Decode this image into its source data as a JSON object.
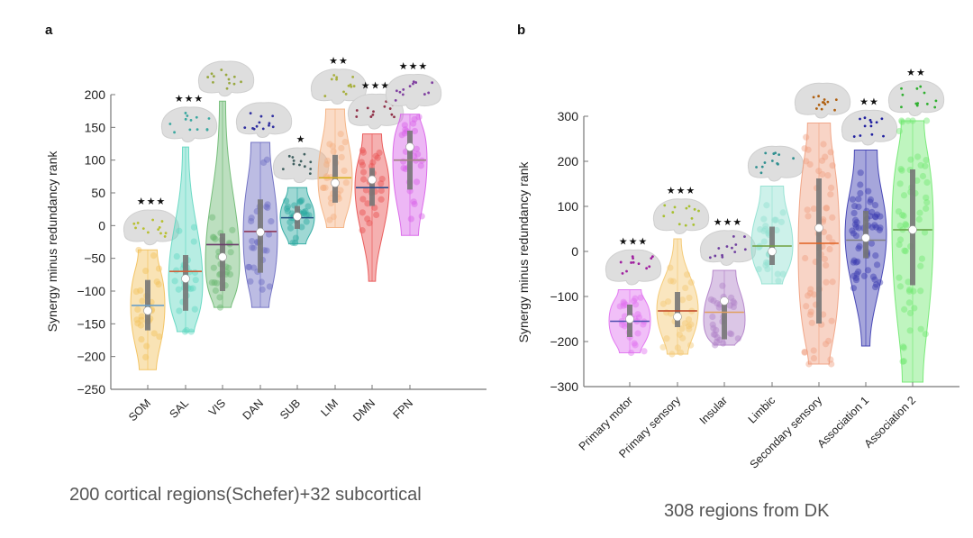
{
  "chart_data": [
    {
      "type": "violin",
      "panel_label": "a",
      "title": "",
      "xlabel": "",
      "ylabel": "Synergy minus redundancy rank",
      "ylim": [
        -250,
        200
      ],
      "yticks": [
        200,
        150,
        100,
        50,
        0,
        -50,
        -100,
        -150,
        -200,
        -250
      ],
      "ytick_labels": [
        "200",
        "150",
        "100",
        "50",
        "0",
        "−50",
        "−100",
        "−150",
        "−200",
        "−250"
      ],
      "grid": false,
      "caption": "200 cortical regions(Schefer)+32 subcortical",
      "categories": [
        "SOM",
        "SAL",
        "VIS",
        "DAN",
        "SUB",
        "LIM",
        "DMN",
        "FPN"
      ],
      "series": [
        {
          "name": "SOM",
          "color": "#f2c05a",
          "line": "#6aa0c8",
          "min": -220,
          "q1": -160,
          "median": -130,
          "mean": -122,
          "q3": -83,
          "max": -37,
          "significance": "***",
          "brain_marker": "#b8c030"
        },
        {
          "name": "SAL",
          "color": "#5fd6c0",
          "line": "#d0603a",
          "min": -162,
          "q1": -130,
          "median": -81,
          "mean": -70,
          "q3": -45,
          "max": 120,
          "significance": "***",
          "brain_marker": "#3aa8a0"
        },
        {
          "name": "VIS",
          "color": "#6ab870",
          "line": "#6a3a6a",
          "min": -125,
          "q1": -100,
          "median": -48,
          "mean": -29,
          "q3": -12,
          "max": 190,
          "significance": "",
          "brain_marker": "#98a840"
        },
        {
          "name": "DAN",
          "color": "#6a6ac0",
          "line": "#8a3050",
          "min": -125,
          "q1": -72,
          "median": -10,
          "mean": -9,
          "q3": 40,
          "max": 127,
          "significance": "",
          "brain_marker": "#3030a0"
        },
        {
          "name": "SUB",
          "color": "#2aa8a0",
          "line": "#205080",
          "min": -28,
          "q1": -5,
          "median": 14,
          "mean": 12,
          "q3": 30,
          "max": 58,
          "significance": "*",
          "brain_marker": "#406060"
        },
        {
          "name": "LIM",
          "color": "#f4b080",
          "line": "#d8b020",
          "min": -3,
          "q1": 35,
          "median": 65,
          "mean": 73,
          "q3": 108,
          "max": 178,
          "significance": "**",
          "brain_marker": "#a8b040"
        },
        {
          "name": "DMN",
          "color": "#e85050",
          "line": "#2a4a8a",
          "min": -85,
          "q1": 30,
          "median": 70,
          "mean": 58,
          "q3": 88,
          "max": 140,
          "significance": "***",
          "brain_marker": "#903048"
        },
        {
          "name": "FPN",
          "color": "#d860e8",
          "line": "#a08080",
          "min": -15,
          "q1": 55,
          "median": 120,
          "mean": 100,
          "q3": 145,
          "max": 170,
          "significance": "***",
          "brain_marker": "#8040a0"
        }
      ]
    },
    {
      "type": "violin",
      "panel_label": "b",
      "title": "",
      "xlabel": "",
      "ylabel": "Synergy minus redundancy rank",
      "ylim": [
        -300,
        300
      ],
      "yticks": [
        300,
        200,
        100,
        0,
        -100,
        -200,
        -300
      ],
      "ytick_labels": [
        "300",
        "200",
        "100",
        "0",
        "−100",
        "−200",
        "−300"
      ],
      "grid": false,
      "caption": "308 regions from DK",
      "categories": [
        "Primary motor",
        "Primary sensory",
        "Insular",
        "Limbic",
        "Secondary sensory",
        "Association 1",
        "Association 2"
      ],
      "series": [
        {
          "name": "Primary motor",
          "color": "#e070f0",
          "line": "#5050b0",
          "min": -225,
          "q1": -190,
          "median": -150,
          "mean": -155,
          "q3": -118,
          "max": -85,
          "significance": "***",
          "brain_marker": "#a020a0"
        },
        {
          "name": "Primary sensory",
          "color": "#f4c870",
          "line": "#c04020",
          "min": -228,
          "q1": -168,
          "median": -145,
          "mean": -132,
          "q3": -90,
          "max": 28,
          "significance": "***",
          "brain_marker": "#a8c030"
        },
        {
          "name": "Insular",
          "color": "#b080c8",
          "line": "#e0a060",
          "min": -208,
          "q1": -195,
          "median": -110,
          "mean": -135,
          "q3": -110,
          "max": -42,
          "significance": "***",
          "brain_marker": "#7040a0"
        },
        {
          "name": "Limbic",
          "color": "#90e0d0",
          "line": "#70a040",
          "min": -72,
          "q1": -30,
          "median": 0,
          "mean": 12,
          "q3": 55,
          "max": 145,
          "significance": "",
          "brain_marker": "#309090"
        },
        {
          "name": "Secondary sensory",
          "color": "#f0a080",
          "line": "#e06020",
          "min": -250,
          "q1": -160,
          "median": 52,
          "mean": 18,
          "q3": 162,
          "max": 285,
          "significance": "",
          "brain_marker": "#b06010"
        },
        {
          "name": "Association 1",
          "color": "#3a3ab0",
          "line": "#808080",
          "min": -210,
          "q1": -15,
          "median": 30,
          "mean": 25,
          "q3": 90,
          "max": 225,
          "significance": "**",
          "brain_marker": "#2020a0"
        },
        {
          "name": "Association 2",
          "color": "#70e870",
          "line": "#60a040",
          "min": -290,
          "q1": -75,
          "median": 48,
          "mean": 48,
          "q3": 182,
          "max": 290,
          "significance": "**",
          "brain_marker": "#30b030"
        }
      ]
    }
  ]
}
